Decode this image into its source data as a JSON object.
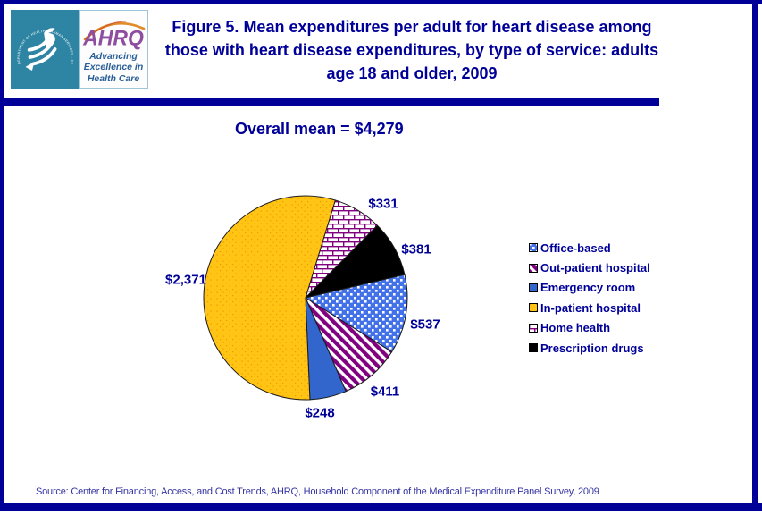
{
  "header": {
    "logo": {
      "seal_text": "DEPARTMENT OF HEALTH & HUMAN SERVICES · USA",
      "brand": "AHRQ",
      "tagline_lines": [
        "Advancing",
        "Excellence in",
        "Health Care"
      ]
    },
    "title": "Figure 5. Mean expenditures per adult for heart disease among those with heart disease expenditures, by type of service: adults age 18 and older, 2009"
  },
  "chart_data": {
    "type": "pie",
    "title": "Figure 5. Mean expenditures per adult for heart disease among those with heart disease expenditures, by type of service: adults age 18 and older, 2009",
    "overall_mean_label": "Overall mean = $4,279",
    "overall_mean_value": 4279,
    "unit": "USD",
    "direction": "clockwise",
    "start_angle_deg_from_12": 17,
    "slices": [
      {
        "label": "Home health",
        "value": 331,
        "display": "$331",
        "pattern": "brick-purple"
      },
      {
        "label": "Prescription drugs",
        "value": 381,
        "display": "$381",
        "pattern": "solid-black"
      },
      {
        "label": "Office-based",
        "value": 537,
        "display": "$537",
        "pattern": "checker-blue"
      },
      {
        "label": "Out-patient hospital",
        "value": 411,
        "display": "$411",
        "pattern": "stripe-purple"
      },
      {
        "label": "Emergency room",
        "value": 248,
        "display": "$248",
        "pattern": "solid-blue"
      },
      {
        "label": "In-patient hospital",
        "value": 2371,
        "display": "$2,371",
        "pattern": "dotted-yellow"
      }
    ],
    "legend": [
      {
        "label": "Office-based",
        "pattern": "checker-blue"
      },
      {
        "label": "Out-patient hospital",
        "pattern": "stripe-purple"
      },
      {
        "label": "Emergency room",
        "pattern": "solid-blue"
      },
      {
        "label": "In-patient hospital",
        "pattern": "dotted-yellow"
      },
      {
        "label": "Home health",
        "pattern": "brick-purple"
      },
      {
        "label": "Prescription drugs",
        "pattern": "solid-black"
      }
    ],
    "legend_position": "right"
  },
  "colors": {
    "navy": "#000099",
    "teal_seal": "#2E85A3",
    "ahrq_purple": "#8E4D9E",
    "arc_orange": "#E08A28",
    "tagline_blue": "#2A6099",
    "source_text": "#3434A3",
    "pie": {
      "solid_blue": "#3366CC",
      "checker_blue_bg": "#4372E8",
      "pattern_white": "#FFFFFF",
      "yellow": "#FFC414",
      "yellow_dot": "#EE9900",
      "purple": "#800080",
      "black": "#000000",
      "outline": "#1A1A1A"
    }
  },
  "footer": {
    "source": "Source: Center for Financing, Access, and Cost Trends, AHRQ, Household Component of the Medical Expenditure Panel Survey,  2009"
  }
}
